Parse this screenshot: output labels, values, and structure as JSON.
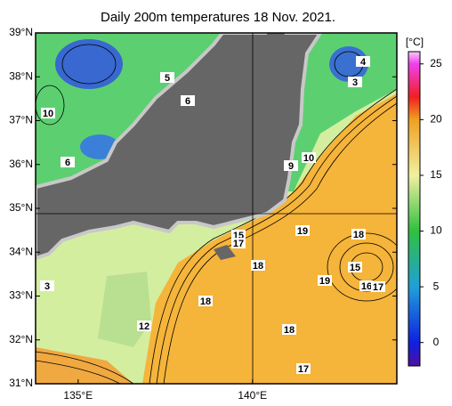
{
  "title": "Daily 200m temperatures 18 Nov. 2021.",
  "map": {
    "xlim": [
      133.78,
      144.14
    ],
    "ylim": [
      31,
      39
    ],
    "lat_ticks": [
      {
        "value": 39,
        "label": "39°N"
      },
      {
        "value": 38,
        "label": "38°N"
      },
      {
        "value": 37,
        "label": "37°N"
      },
      {
        "value": 36,
        "label": "36°N"
      },
      {
        "value": 35,
        "label": "35°N"
      },
      {
        "value": 34,
        "label": "34°N"
      },
      {
        "value": 33,
        "label": "33°N"
      },
      {
        "value": 32,
        "label": "32°N"
      },
      {
        "value": 31,
        "label": "31°N"
      }
    ],
    "lon_ticks": [
      {
        "value": 135,
        "label": "135°E"
      },
      {
        "value": 140,
        "label": "140°E"
      }
    ],
    "contour_labels": [
      5,
      6,
      10,
      6,
      4,
      3,
      9,
      10,
      19,
      18,
      15,
      17,
      18,
      15,
      19,
      16,
      17,
      18,
      12,
      18,
      17,
      3
    ]
  },
  "colorbar": {
    "label": "[°C]",
    "lim": [
      -2.1,
      26.1
    ],
    "ticks": [
      0,
      5,
      10,
      15,
      20,
      25
    ]
  }
}
